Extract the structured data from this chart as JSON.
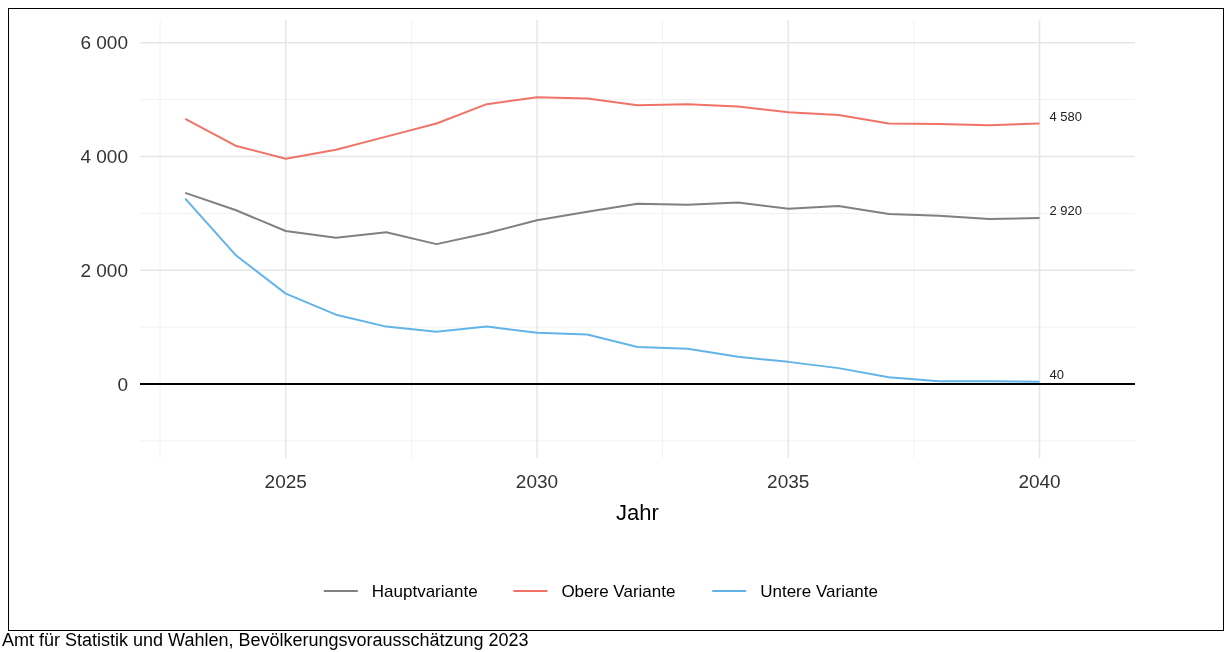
{
  "chart_data": {
    "type": "line",
    "xlabel": "Jahr",
    "x": [
      2023,
      2024,
      2025,
      2026,
      2027,
      2028,
      2029,
      2030,
      2031,
      2032,
      2033,
      2034,
      2035,
      2036,
      2037,
      2038,
      2039,
      2040
    ],
    "series": [
      {
        "name": "Hauptvariante",
        "color": "#808080",
        "values": [
          3360,
          3060,
          2690,
          2570,
          2670,
          2460,
          2650,
          2880,
          3030,
          3170,
          3150,
          3190,
          3080,
          3130,
          2990,
          2960,
          2900,
          2920
        ],
        "value_labels": [
          null,
          null,
          null,
          null,
          null,
          null,
          null,
          null,
          null,
          null,
          null,
          null,
          null,
          null,
          null,
          null,
          null,
          "2 920"
        ]
      },
      {
        "name": "Obere Variante",
        "color": "#ef7467",
        "values": [
          4660,
          4190,
          3960,
          4120,
          4350,
          4580,
          4920,
          5040,
          5020,
          4900,
          4920,
          4880,
          4780,
          4730,
          4580,
          4570,
          4550,
          4580
        ],
        "value_labels": [
          null,
          null,
          null,
          null,
          null,
          null,
          null,
          null,
          null,
          null,
          null,
          null,
          null,
          null,
          null,
          null,
          null,
          "4 580"
        ]
      },
      {
        "name": "Untere Variante",
        "color": "#62b4e8",
        "values": [
          3260,
          2270,
          1590,
          1220,
          1010,
          920,
          1010,
          900,
          870,
          650,
          620,
          480,
          390,
          280,
          120,
          50,
          50,
          40
        ],
        "value_labels": [
          null,
          null,
          null,
          null,
          null,
          null,
          null,
          null,
          null,
          null,
          null,
          null,
          null,
          null,
          null,
          null,
          null,
          "40"
        ]
      }
    ],
    "xlim": [
      2022.1,
      2041.9
    ],
    "xticks": [
      2025,
      2030,
      2035,
      2040
    ],
    "ylim": [
      -1300,
      6400
    ],
    "yticks": [
      {
        "value": 0,
        "label": "0"
      },
      {
        "value": 2000,
        "label": "2 000"
      },
      {
        "value": 4000,
        "label": "4 000"
      },
      {
        "value": 6000,
        "label": "6 000"
      }
    ],
    "grid": true,
    "legend": "bottom",
    "ref_lines": [
      {
        "axis": "y",
        "value": 0,
        "color": "#000000"
      }
    ],
    "annotations": [
      "Amt für Statistik und Wahlen, Bevölkerungsvorausschätzung 2023"
    ]
  }
}
